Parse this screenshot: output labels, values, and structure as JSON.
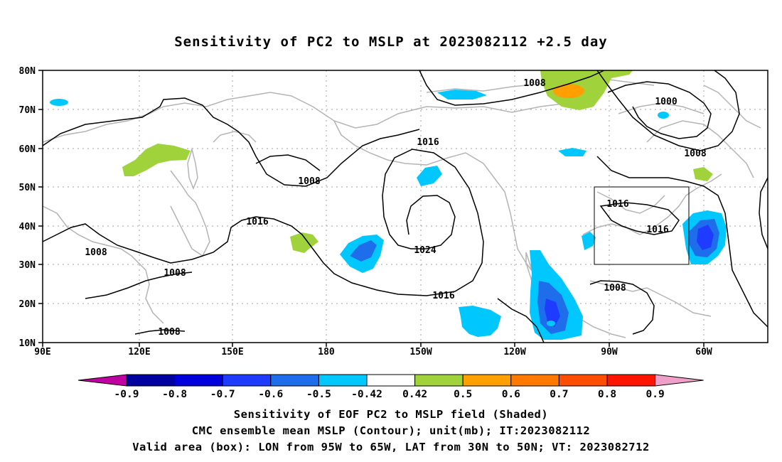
{
  "title": "Sensitivity of PC2 to MSLP at 2023082112 +2.5 day",
  "map": {
    "lat_labels": [
      "80N",
      "70N",
      "60N",
      "50N",
      "40N",
      "30N",
      "20N",
      "10N"
    ],
    "lon_labels": [
      "90E",
      "120E",
      "150E",
      "180",
      "150W",
      "120W",
      "90W",
      "60W"
    ],
    "contour_labels": [
      "1008",
      "1000",
      "1008",
      "1016",
      "1008",
      "1016",
      "1024",
      "1016",
      "1016",
      "1016",
      "1008",
      "1008",
      "1008",
      "1008"
    ],
    "colors": {
      "contour": "#000000",
      "coastline": "#b4b4b4",
      "grid": "#a0a0a0",
      "neg_09": "#0000a0",
      "neg_08": "#0000dc",
      "neg_07": "#1e3cff",
      "neg_06": "#1e6eeb",
      "neg_05": "#00a0ff",
      "neg_042": "#00c8ff",
      "pos_042": "#a0d23c",
      "pos_05": "#ff9f00",
      "pos_06": "#ff7800",
      "pos_07": "#ff4e00",
      "pos_08": "#ff1400",
      "pos_09": "#f01e96",
      "low_end": "#c000a0",
      "high_end": "#f0a0c8"
    }
  },
  "colorbar": {
    "labels": [
      "-0.9",
      "-0.8",
      "-0.7",
      "-0.6",
      "-0.5",
      "-0.42",
      "0.42",
      "0.5",
      "0.6",
      "0.7",
      "0.8",
      "0.9"
    ]
  },
  "captions": [
    "Sensitivity of EOF PC2 to MSLP field (Shaded)",
    "CMC ensemble mean MSLP (Contour); unit(mb); IT:2023082112",
    "Valid area (box): LON from 95W to 65W, LAT from 30N to 50N; VT: 2023082712"
  ]
}
